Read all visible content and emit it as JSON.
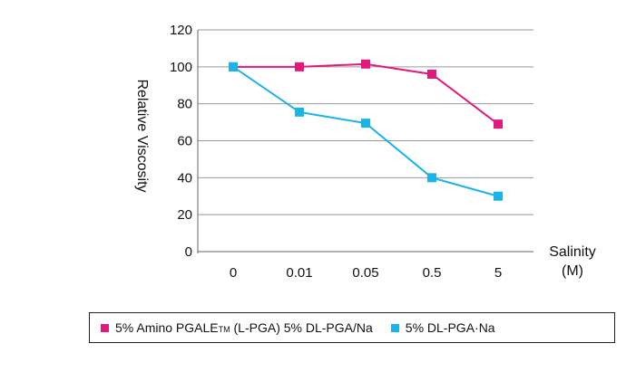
{
  "chart_data": {
    "type": "line",
    "categories": [
      "0",
      "0.01",
      "0.05",
      "0.5",
      "5"
    ],
    "ylabel": "Relative Viscosity",
    "xlabel": "Salinity",
    "xunit": "(M)",
    "ylim": [
      0,
      120
    ],
    "yticks": [
      "0",
      "20",
      "40",
      "60",
      "80",
      "100",
      "120"
    ],
    "grid": true,
    "legend_position": "bottom",
    "series": [
      {
        "name_prefix": "5% Amino PGALE",
        "name_super": "TM",
        "name_suffix": " (L-PGA) 5% DL-PGA/Na",
        "color": "#e2187c",
        "values": [
          100,
          100,
          101.5,
          96,
          69
        ]
      },
      {
        "name": "5% DL-PGA·Na",
        "color": "#1ab4e8",
        "values": [
          100,
          75.5,
          69.5,
          40,
          30
        ]
      }
    ]
  }
}
